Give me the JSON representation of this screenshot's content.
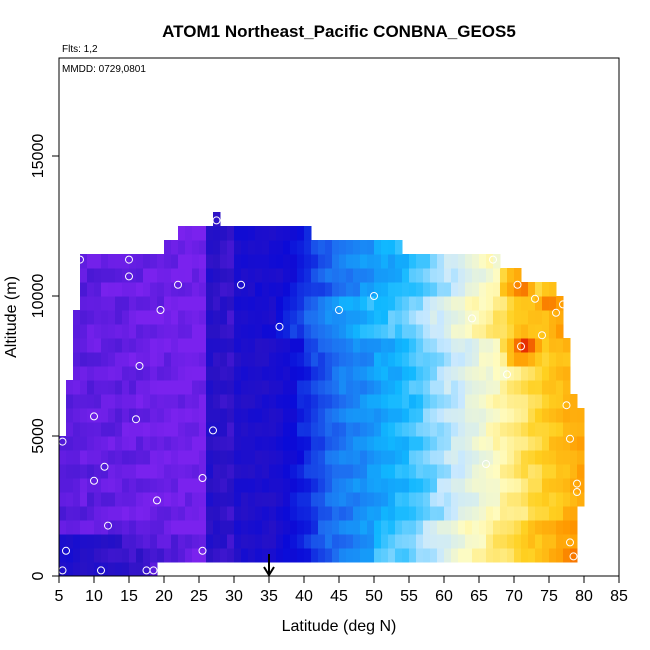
{
  "chart_data": {
    "type": "heatmap",
    "title": "ATOM1 Northeast_Pacific CONBNA_GEOS5",
    "annotations": {
      "flights": "Flts: 1,2",
      "dates": "MMDD: 0729,0801"
    },
    "xlabel": "Latitude (deg N)",
    "ylabel": "Altitude (m)",
    "xlim": [
      5,
      85
    ],
    "ylim": [
      0,
      18500
    ],
    "xticks": [
      5,
      10,
      15,
      20,
      25,
      30,
      35,
      40,
      45,
      50,
      55,
      60,
      65,
      70,
      75,
      80,
      85
    ],
    "yticks": [
      0,
      5000,
      10000,
      15000
    ],
    "grid": false,
    "colorscale": [
      "#7a22ee",
      "#2a12c4",
      "#0a0ad8",
      "#1e6cf0",
      "#10b8ff",
      "#c8e8ff",
      "#fffcc0",
      "#ffd020",
      "#ff9800",
      "#e42000"
    ],
    "bin_width_deg": 1,
    "bin_height_m": 500,
    "rows": [
      {
        "alt_min": 0,
        "lat_min": 5,
        "lat_max": 19
      },
      {
        "alt_min": 500,
        "lat_min": 5,
        "lat_max": 79
      },
      {
        "alt_min": 1000,
        "lat_min": 5,
        "lat_max": 79
      },
      {
        "alt_min": 1500,
        "lat_min": 5,
        "lat_max": 79
      },
      {
        "alt_min": 2000,
        "lat_min": 5,
        "lat_max": 79
      },
      {
        "alt_min": 2500,
        "lat_min": 5,
        "lat_max": 80
      },
      {
        "alt_min": 3000,
        "lat_min": 5,
        "lat_max": 80
      },
      {
        "alt_min": 3500,
        "lat_min": 5,
        "lat_max": 80
      },
      {
        "alt_min": 4000,
        "lat_min": 5,
        "lat_max": 80
      },
      {
        "alt_min": 4500,
        "lat_min": 5,
        "lat_max": 80
      },
      {
        "alt_min": 5000,
        "lat_min": 6,
        "lat_max": 80
      },
      {
        "alt_min": 5500,
        "lat_min": 6,
        "lat_max": 80
      },
      {
        "alt_min": 6000,
        "lat_min": 6,
        "lat_max": 79
      },
      {
        "alt_min": 6500,
        "lat_min": 6,
        "lat_max": 78
      },
      {
        "alt_min": 7000,
        "lat_min": 7,
        "lat_max": 78
      },
      {
        "alt_min": 7500,
        "lat_min": 7,
        "lat_max": 78
      },
      {
        "alt_min": 8000,
        "lat_min": 7,
        "lat_max": 78
      },
      {
        "alt_min": 8500,
        "lat_min": 7,
        "lat_max": 77
      },
      {
        "alt_min": 9000,
        "lat_min": 7,
        "lat_max": 77
      },
      {
        "alt_min": 9500,
        "lat_min": 8,
        "lat_max": 77
      },
      {
        "alt_min": 10000,
        "lat_min": 8,
        "lat_max": 76
      },
      {
        "alt_min": 10500,
        "lat_min": 8,
        "lat_max": 71
      },
      {
        "alt_min": 11000,
        "lat_min": 8,
        "lat_max": 68
      },
      {
        "alt_min": 11500,
        "lat_min": 20,
        "lat_max": 54
      },
      {
        "alt_min": 12000,
        "lat_min": 22,
        "lat_max": 41
      },
      {
        "alt_min": 12500,
        "lat_min": 27,
        "lat_max": 28
      }
    ],
    "value_model": {
      "description": "relative intensity 0-1, low (purple) at low latitudes, minimum near 30-35 N, rising (yellow/red) toward high latitudes",
      "hotspots": [
        {
          "lat": 71.5,
          "alt": 8200,
          "value": 1.0
        },
        {
          "lat": 71,
          "alt": 10300,
          "value": 0.98
        },
        {
          "lat": 75,
          "alt": 9800,
          "value": 0.95
        }
      ]
    },
    "points": [
      [
        27.5,
        12700
      ],
      [
        8,
        11300
      ],
      [
        15,
        11300
      ],
      [
        67,
        11300
      ],
      [
        15,
        10700
      ],
      [
        22,
        10400
      ],
      [
        31,
        10400
      ],
      [
        70.5,
        10400
      ],
      [
        50,
        10000
      ],
      [
        73,
        9900
      ],
      [
        77,
        9700
      ],
      [
        19.5,
        9500
      ],
      [
        45,
        9500
      ],
      [
        76,
        9400
      ],
      [
        64,
        9200
      ],
      [
        36.5,
        8900
      ],
      [
        74,
        8600
      ],
      [
        71,
        8200
      ],
      [
        16.5,
        7500
      ],
      [
        69,
        7200
      ],
      [
        77.5,
        6100
      ],
      [
        10,
        5700
      ],
      [
        16,
        5600
      ],
      [
        27,
        5200
      ],
      [
        78,
        4900
      ],
      [
        5.5,
        4800
      ],
      [
        66,
        4000
      ],
      [
        11.5,
        3900
      ],
      [
        10,
        3400
      ],
      [
        25.5,
        3500
      ],
      [
        79,
        3300
      ],
      [
        79,
        3000
      ],
      [
        19,
        2700
      ],
      [
        12,
        1800
      ],
      [
        78,
        1200
      ],
      [
        6,
        900
      ],
      [
        25.5,
        900
      ],
      [
        78.5,
        700
      ],
      [
        5.5,
        200
      ],
      [
        11,
        200
      ],
      [
        17.5,
        200
      ],
      [
        18.5,
        200
      ]
    ],
    "marker": {
      "lat": 35,
      "symbol": "down-arrow"
    }
  }
}
